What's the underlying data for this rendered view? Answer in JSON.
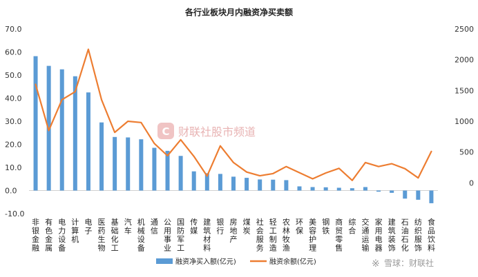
{
  "chart_data": {
    "title": "各行业板块月内融资净买卖额",
    "type": "bar+line",
    "categories": [
      "非银金融",
      "有色金属",
      "电力设备",
      "计算机",
      "电子",
      "医药生物",
      "基础化工",
      "汽车",
      "机械设备",
      "通信",
      "公用事业",
      "国防军工",
      "传媒",
      "建筑材料",
      "银行",
      "房地产",
      "煤炭",
      "社会服务",
      "轻工制造",
      "农林牧渔",
      "环保",
      "美容护理",
      "钢铁",
      "商贸零售",
      "综合",
      "交通运输",
      "家用电器",
      "建筑装饰",
      "石油石化",
      "纺织服饰",
      "食品饮料"
    ],
    "series": [
      {
        "name": "融资净买入额(亿元)",
        "type": "bar",
        "axis": "left",
        "color": "#5b9bd5",
        "values": [
          58.2,
          54.0,
          52.5,
          49.5,
          42.5,
          29.5,
          23.2,
          23.0,
          22.2,
          18.5,
          17.2,
          15.0,
          8.3,
          7.5,
          7.2,
          6.0,
          5.5,
          4.8,
          4.7,
          4.5,
          1.8,
          1.5,
          1.4,
          1.2,
          1.0,
          1.5,
          -0.5,
          -1.0,
          -3.5,
          -4.0,
          -5.5
        ]
      },
      {
        "name": "融资余额(亿元)",
        "type": "line",
        "axis": "right",
        "color": "#ed7d31",
        "values": [
          1600,
          850,
          1350,
          1480,
          2170,
          1350,
          820,
          1000,
          980,
          640,
          440,
          700,
          430,
          110,
          600,
          330,
          175,
          115,
          150,
          265,
          165,
          65,
          160,
          235,
          40,
          330,
          265,
          310,
          230,
          80,
          510
        ]
      }
    ],
    "y_left": {
      "range": [
        -10,
        70
      ],
      "ticks": [
        -10,
        0,
        10,
        20,
        30,
        40,
        50,
        60,
        70
      ]
    },
    "y_right": {
      "range": [
        -500,
        2500
      ],
      "ticks": [
        0,
        500,
        1000,
        1500,
        2000,
        2500
      ]
    },
    "legend_position": "bottom",
    "grid": false
  },
  "watermark_text": "财联社股市频道",
  "watermark_logo_char": "C",
  "source_mark": "雪球：财联社",
  "source_mark_glyph": "※"
}
